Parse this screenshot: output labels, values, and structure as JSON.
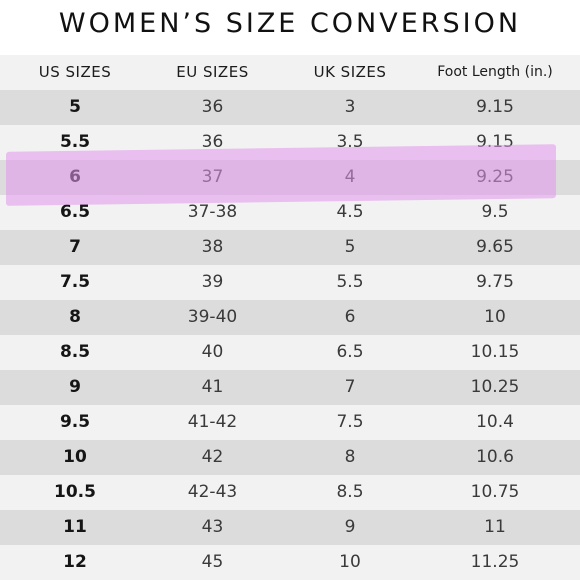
{
  "title": "WOMEN’S SIZE CONVERSION",
  "table": {
    "headers": [
      "US SIZES",
      "EU SIZES",
      "UK SIZES",
      "Foot Length (in.)"
    ],
    "rows": [
      [
        "5",
        "36",
        "3",
        "9.15"
      ],
      [
        "5.5",
        "36",
        "3.5",
        "9.15"
      ],
      [
        "6",
        "37",
        "4",
        "9.25"
      ],
      [
        "6.5",
        "37-38",
        "4.5",
        "9.5"
      ],
      [
        "7",
        "38",
        "5",
        "9.65"
      ],
      [
        "7.5",
        "39",
        "5.5",
        "9.75"
      ],
      [
        "8",
        "39-40",
        "6",
        "10"
      ],
      [
        "8.5",
        "40",
        "6.5",
        "10.15"
      ],
      [
        "9",
        "41",
        "7",
        "10.25"
      ],
      [
        "9.5",
        "41-42",
        "7.5",
        "10.4"
      ],
      [
        "10",
        "42",
        "8",
        "10.6"
      ],
      [
        "10.5",
        "42-43",
        "8.5",
        "10.75"
      ],
      [
        "11",
        "43",
        "9",
        "11"
      ],
      [
        "12",
        "45",
        "10",
        "11.25"
      ]
    ]
  },
  "colors": {
    "highlight": "#e096eb",
    "row_dark": "#dcdcdc",
    "row_light": "#f2f2f2"
  }
}
